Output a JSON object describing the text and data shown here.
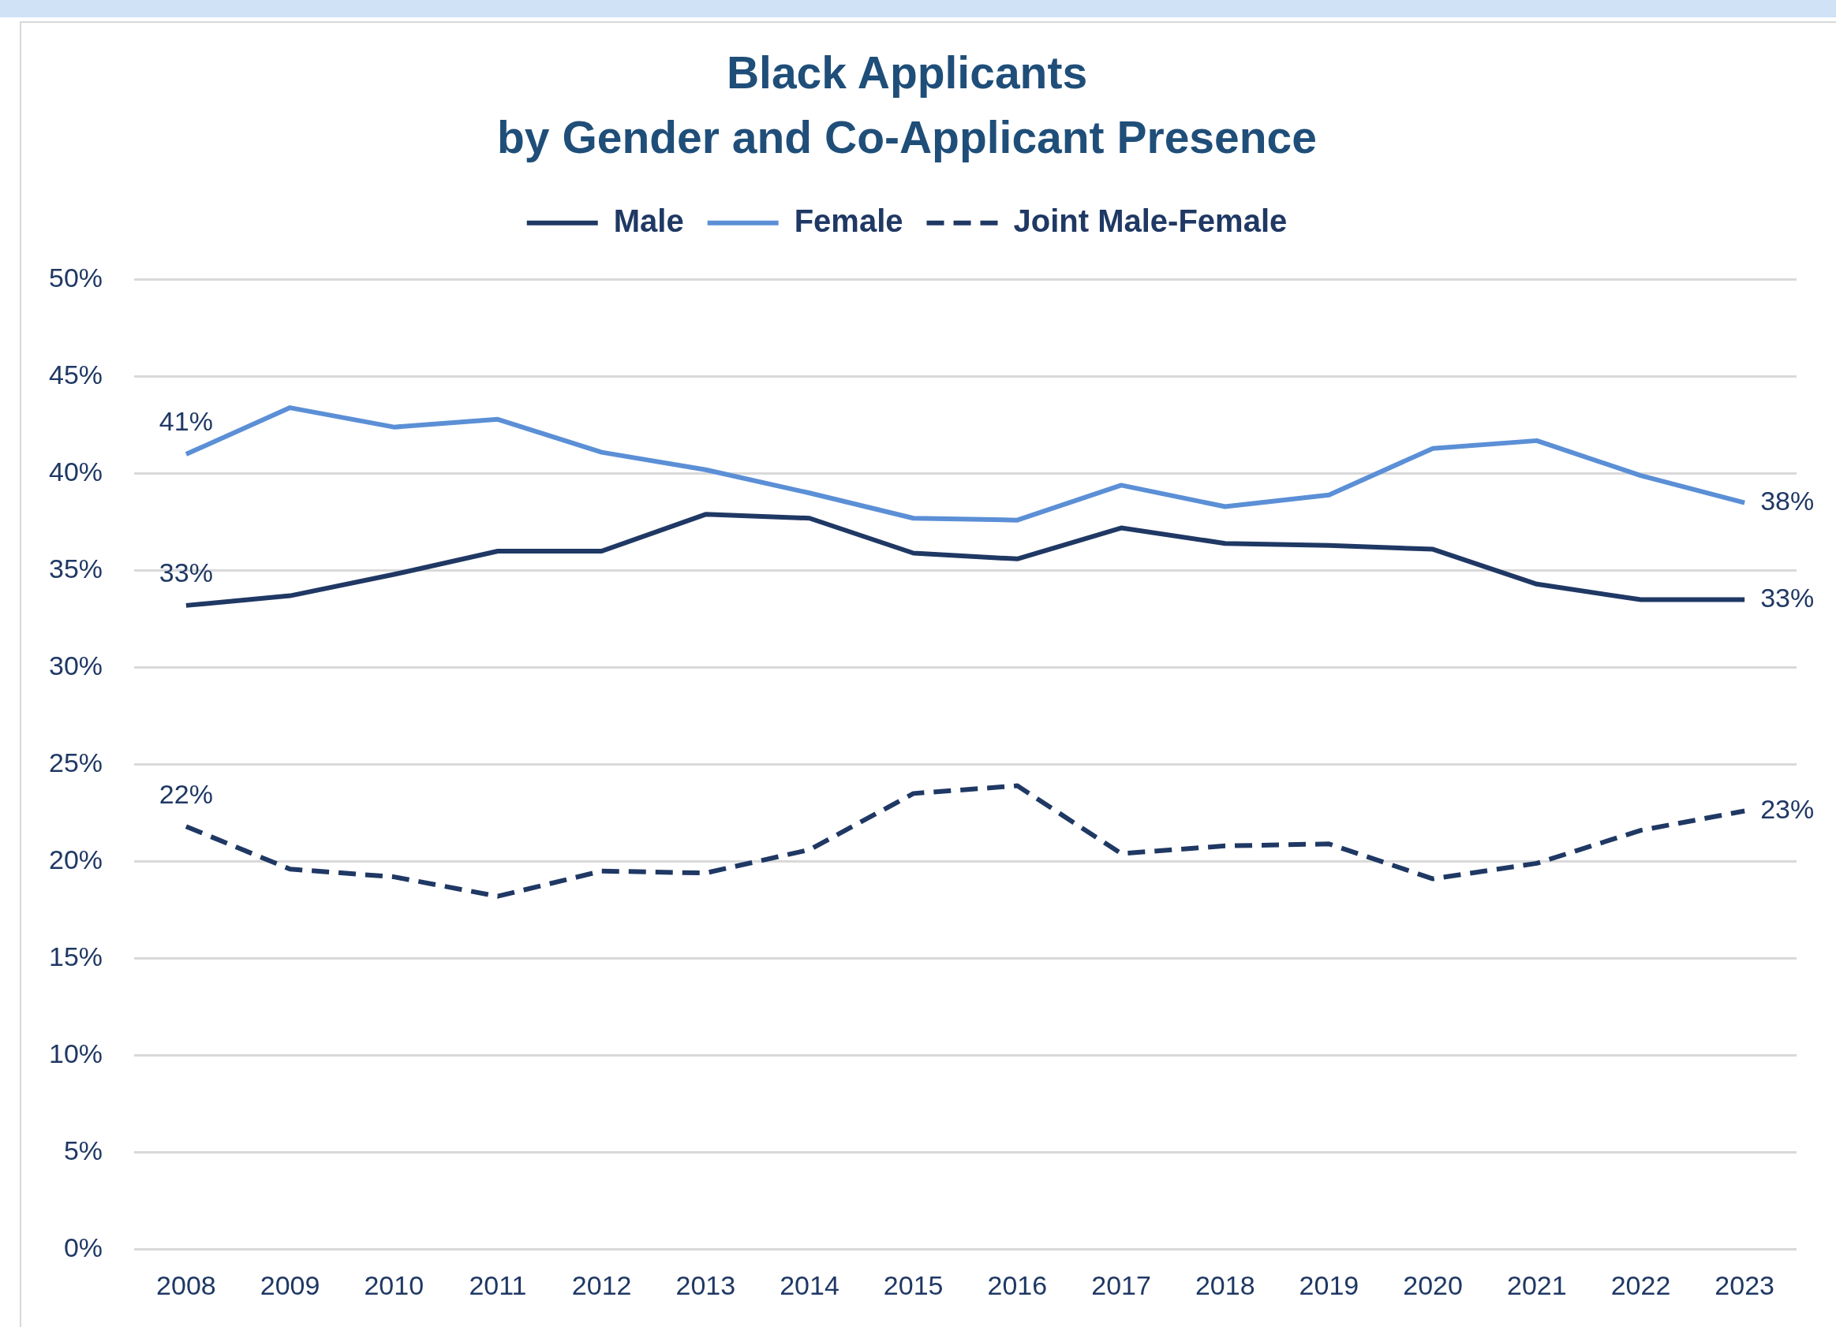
{
  "chart_data": {
    "type": "line",
    "title": "Black Applicants",
    "subtitle": "by Gender and Co-Applicant Presence",
    "categories": [
      "2008",
      "2009",
      "2010",
      "2011",
      "2012",
      "2013",
      "2014",
      "2015",
      "2016",
      "2017",
      "2018",
      "2019",
      "2020",
      "2021",
      "2022",
      "2023"
    ],
    "series": [
      {
        "name": "Male",
        "color": "#1f3864",
        "values": [
          33.2,
          33.7,
          34.8,
          36.0,
          36.0,
          37.9,
          37.7,
          35.9,
          35.6,
          37.2,
          36.4,
          36.3,
          36.1,
          34.3,
          33.5,
          33.5
        ],
        "value_labels": [
          "33%",
          null,
          null,
          null,
          null,
          null,
          null,
          null,
          null,
          null,
          null,
          null,
          null,
          null,
          null,
          "33%"
        ]
      },
      {
        "name": "Female",
        "color": "#5b8fd6",
        "values": [
          41.0,
          43.4,
          42.4,
          42.8,
          41.1,
          40.2,
          39.0,
          37.7,
          37.6,
          39.4,
          38.3,
          38.9,
          41.3,
          41.7,
          39.9,
          38.5
        ],
        "value_labels": [
          "41%",
          null,
          null,
          null,
          null,
          null,
          null,
          null,
          null,
          null,
          null,
          null,
          null,
          null,
          null,
          "38%"
        ]
      },
      {
        "name": "Joint Male-Female",
        "color": "#1f3864",
        "line_style": "dashed",
        "values": [
          21.8,
          19.6,
          19.2,
          18.2,
          19.5,
          19.4,
          20.6,
          23.5,
          23.9,
          20.4,
          20.8,
          20.9,
          19.1,
          19.9,
          21.6,
          22.6
        ],
        "value_labels": [
          "22%",
          null,
          null,
          null,
          null,
          null,
          null,
          null,
          null,
          null,
          null,
          null,
          null,
          null,
          null,
          "23%"
        ]
      }
    ],
    "ylim": [
      0,
      50
    ],
    "yticks": [
      {
        "value": 0,
        "label": "0%"
      },
      {
        "value": 5,
        "label": "5%"
      },
      {
        "value": 10,
        "label": "10%"
      },
      {
        "value": 15,
        "label": "15%"
      },
      {
        "value": 20,
        "label": "20%"
      },
      {
        "value": 25,
        "label": "25%"
      },
      {
        "value": 30,
        "label": "30%"
      },
      {
        "value": 35,
        "label": "35%"
      },
      {
        "value": 40,
        "label": "40%"
      },
      {
        "value": 45,
        "label": "45%"
      },
      {
        "value": 50,
        "label": "50%"
      }
    ],
    "grid": "y",
    "legend": "top",
    "marker": "none",
    "line_style": "solid"
  }
}
